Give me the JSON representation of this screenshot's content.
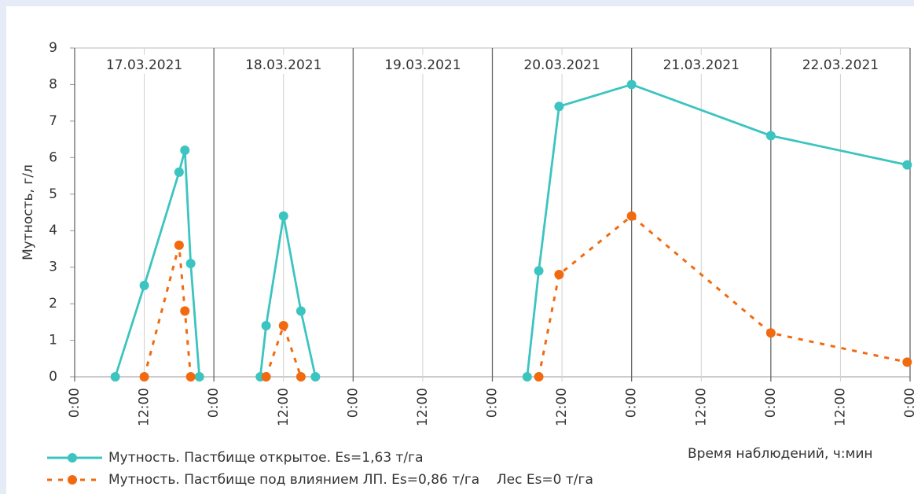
{
  "chart_data": {
    "type": "line",
    "ylabel": "Мутность, г/л",
    "xlabel": "Время наблюдений, ч:мин",
    "day_labels": [
      "17.03.2021",
      "18.03.2021",
      "19.03.2021",
      "20.03.2021",
      "21.03.2021",
      "22.03.2021"
    ],
    "xlim": [
      0,
      144
    ],
    "xticks": [
      {
        "value": 0,
        "label": "0:00"
      },
      {
        "value": 12,
        "label": "12:00"
      },
      {
        "value": 24,
        "label": "0:00"
      },
      {
        "value": 36,
        "label": "12:00"
      },
      {
        "value": 48,
        "label": "0:00"
      },
      {
        "value": 60,
        "label": "12:00"
      },
      {
        "value": 72,
        "label": "0:00"
      },
      {
        "value": 84,
        "label": "12:00"
      },
      {
        "value": 96,
        "label": "0:00"
      },
      {
        "value": 108,
        "label": "12:00"
      },
      {
        "value": 120,
        "label": "0:00"
      },
      {
        "value": 132,
        "label": "12:00"
      },
      {
        "value": 144,
        "label": "0:00"
      }
    ],
    "ylim": [
      0,
      9
    ],
    "yticks": [
      0,
      1,
      2,
      3,
      4,
      5,
      6,
      7,
      8,
      9
    ],
    "series": [
      {
        "name": "Мутность. Пастбище открытое. Es=1,63 т/га",
        "color": "#3cc4c0",
        "dash": false,
        "x": [
          7,
          12,
          18,
          19,
          20,
          21.5,
          null,
          32,
          33,
          36,
          39,
          41.5,
          null,
          78,
          80,
          83.5,
          96,
          120,
          143.5
        ],
        "values": [
          0,
          2.5,
          5.6,
          6.2,
          3.1,
          0,
          null,
          0,
          1.4,
          4.4,
          1.8,
          0,
          null,
          0,
          2.9,
          7.4,
          8.0,
          6.6,
          5.8
        ]
      },
      {
        "name": "Мутность. Пастбище под влиянием ЛП. Es=0,86 т/га    Лес Es=0 т/га",
        "color": "#f26a0f",
        "dash": true,
        "x": [
          12,
          18,
          19,
          20,
          null,
          33,
          36,
          39,
          null,
          80,
          83.5,
          96,
          120,
          143.5
        ],
        "values": [
          0,
          3.6,
          1.8,
          0,
          null,
          0,
          1.4,
          0,
          null,
          0,
          2.8,
          4.4,
          1.2,
          0.4
        ]
      }
    ]
  }
}
